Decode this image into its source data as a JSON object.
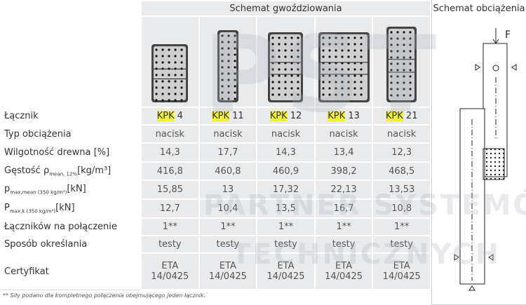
{
  "header": {
    "nailing_scheme": "Schemat gwoździowania",
    "load_scheme": "Schemat obciążenia",
    "force": "F"
  },
  "watermark": {
    "logo": "PST",
    "line1": "PARTNER SYSTEMÓW",
    "line2": "TECHNICZNYCH"
  },
  "connectors": {
    "label": "Łącznik",
    "items": [
      {
        "prefix": "KPK",
        "number": "4"
      },
      {
        "prefix": "KPK",
        "number": "11"
      },
      {
        "prefix": "KPK",
        "number": "12"
      },
      {
        "prefix": "KPK",
        "number": "13"
      },
      {
        "prefix": "KPK",
        "number": "21"
      }
    ]
  },
  "rows": [
    {
      "label": {
        "text": "Typ obciążenia"
      },
      "values": [
        "nacisk",
        "nacisk",
        "nacisk",
        "nacisk",
        "nacisk"
      ]
    },
    {
      "label": {
        "text": "Wilgotność drewna [%]"
      },
      "values": [
        "14,3",
        "17,7",
        "14,3",
        "13,4",
        "12,3"
      ]
    },
    {
      "label": {
        "text": "Gęstość ρ",
        "sub": "mean, 12%",
        "after": "[kg/m³]"
      },
      "values": [
        "416,8",
        "460,8",
        "460,9",
        "398,2",
        "468,5"
      ]
    },
    {
      "label": {
        "text": "p",
        "sub": "max,mean (350 kg/m³)",
        "after": "[kN]"
      },
      "values": [
        "15,85",
        "13",
        "17,32",
        "22,13",
        "13,53"
      ]
    },
    {
      "label": {
        "text": "P",
        "sub": "max,k (350 kg/m³)",
        "after": "[kN]"
      },
      "values": [
        "12,7",
        "10,4",
        "13,5",
        "16,7",
        "10,8"
      ]
    },
    {
      "label": {
        "text": "Łączników na połączenie"
      },
      "values": [
        "1**",
        "1**",
        "1**",
        "1**",
        "1**"
      ]
    },
    {
      "label": {
        "text": "Sposób określania"
      },
      "values": [
        "testy",
        "testy",
        "testy",
        "testy",
        "testy"
      ]
    },
    {
      "label": {
        "text": "Certyfikat"
      },
      "values": [
        [
          "ETA",
          "14/0425"
        ],
        [
          "ETA",
          "14/0425"
        ],
        [
          "ETA",
          "14/0425"
        ],
        [
          "ETA",
          "14/0425"
        ],
        [
          "ETA",
          "14/0425"
        ]
      ]
    }
  ],
  "footnote": "** Siły podano dla kompletnego połączenia obejmującego jeden łącznik."
}
